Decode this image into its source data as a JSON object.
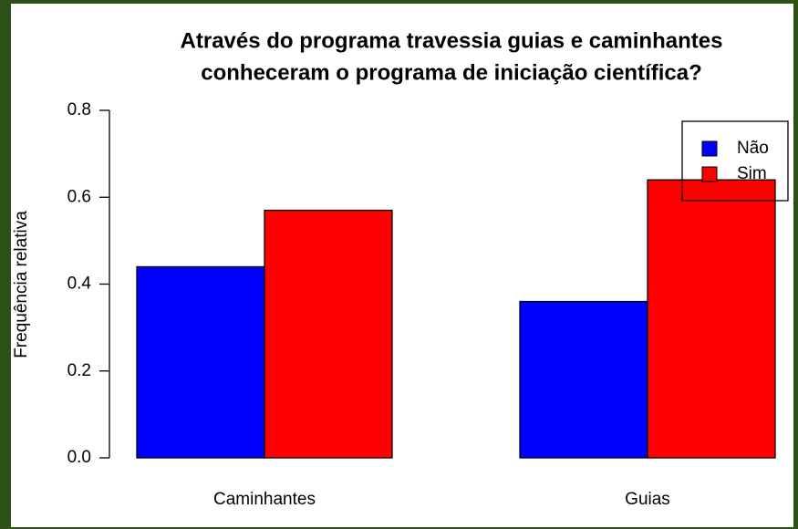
{
  "chart_data": {
    "type": "bar",
    "title": [
      "Através do programa travessia guias e caminhantes",
      "conheceram o programa de iniciação científica?"
    ],
    "ylabel": "Frequência relativa",
    "categories": [
      "Caminhantes",
      "Guias"
    ],
    "series": [
      {
        "name": "Não",
        "color": "#0000ff",
        "values": [
          0.44,
          0.36
        ]
      },
      {
        "name": "Sim",
        "color": "#ff0000",
        "values": [
          0.57,
          0.64
        ]
      }
    ],
    "ylim": [
      0,
      0.8
    ],
    "yticks": [
      {
        "value": 0,
        "label": "0.0"
      },
      0.2,
      0.4,
      0.6,
      0.8
    ],
    "legend": "top-right"
  }
}
